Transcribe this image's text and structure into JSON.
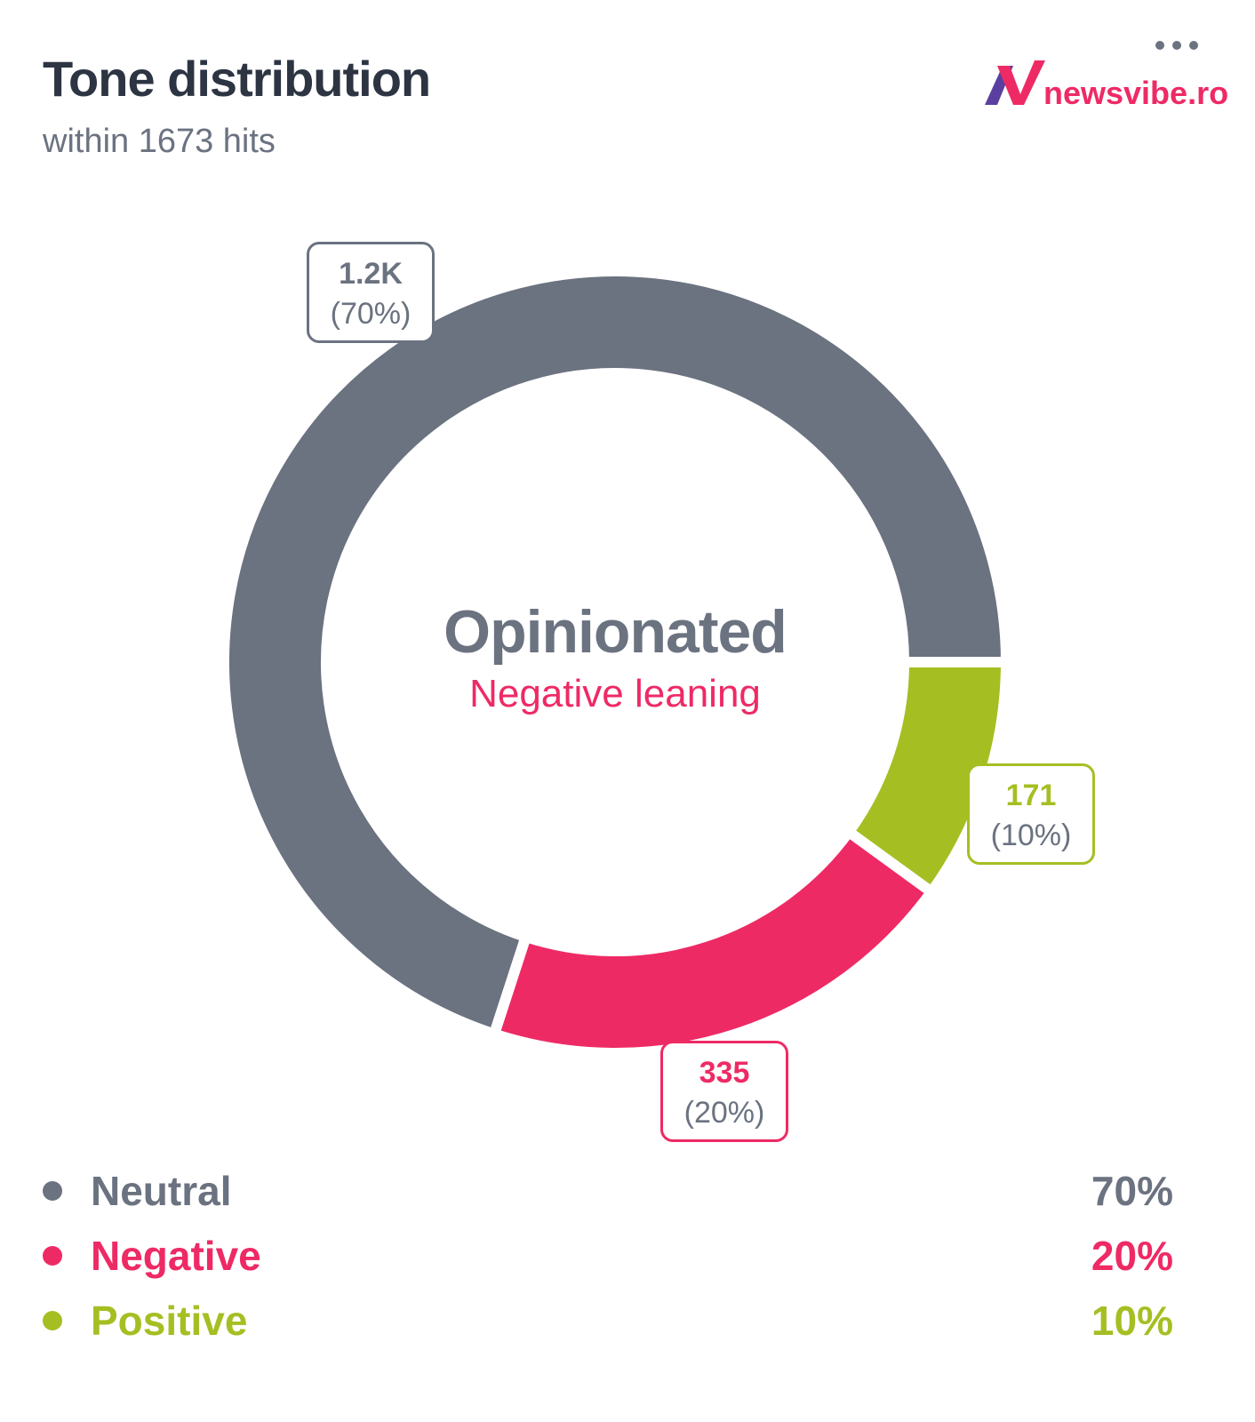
{
  "header": {
    "title": "Tone distribution",
    "subtitle": "within 1673 hits",
    "menu_icon": "more-horizontal-icon"
  },
  "logo": {
    "text": "newsvibe.ro"
  },
  "center": {
    "main": "Opinionated",
    "sub": "Negative leaning"
  },
  "chart_data": {
    "type": "pie",
    "variant": "donut",
    "title": "Tone distribution",
    "total": 1673,
    "slices": [
      {
        "name": "Positive",
        "value": 171,
        "value_label": "171",
        "percent": 10,
        "percent_label": "(10%)",
        "color": "#a5bf23"
      },
      {
        "name": "Negative",
        "value": 335,
        "value_label": "335",
        "percent": 20,
        "percent_label": "(20%)",
        "color": "#ee2a65"
      },
      {
        "name": "Neutral",
        "value": 1167,
        "value_label": "1.2K",
        "percent": 70,
        "percent_label": "(70%)",
        "color": "#6b7280"
      }
    ],
    "legend": [
      {
        "name": "Neutral",
        "pct": "70%",
        "color": "#6b7280"
      },
      {
        "name": "Negative",
        "pct": "20%",
        "color": "#ee2a65"
      },
      {
        "name": "Positive",
        "pct": "10%",
        "color": "#a5bf23"
      }
    ],
    "legend_position": "bottom"
  }
}
